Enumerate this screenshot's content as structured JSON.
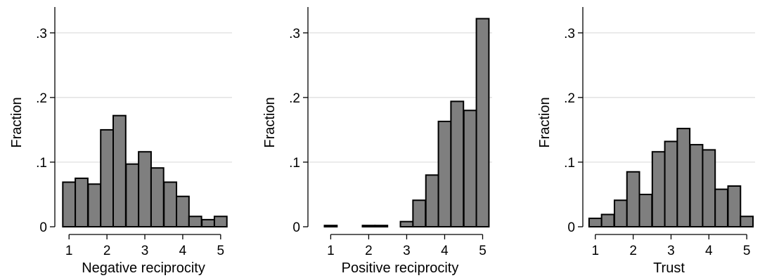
{
  "chart_data": [
    {
      "type": "bar",
      "xlabel": "Negative reciprocity",
      "ylabel": "Fraction",
      "xlim": [
        0.625,
        5.3
      ],
      "ylim": [
        0,
        0.34
      ],
      "bar_width": 0.33,
      "xticks": [
        1,
        2,
        3,
        4,
        5
      ],
      "xtick_labels": [
        "1",
        "2",
        "3",
        "4",
        "5"
      ],
      "yticks": [
        0,
        0.1,
        0.2,
        0.3
      ],
      "ytick_labels": [
        "0",
        ".1",
        ".2",
        ".3"
      ],
      "grid": true,
      "x": [
        1.0,
        1.33,
        1.67,
        2.0,
        2.33,
        2.67,
        3.0,
        3.33,
        3.67,
        4.0,
        4.33,
        4.67,
        5.0
      ],
      "values": [
        0.069,
        0.075,
        0.066,
        0.15,
        0.172,
        0.097,
        0.116,
        0.091,
        0.069,
        0.047,
        0.016,
        0.011,
        0.016
      ],
      "fill_color": "#7f7f7f"
    },
    {
      "type": "bar",
      "xlabel": "Positive reciprocity",
      "ylabel": "Fraction",
      "xlim": [
        0.4,
        5.25
      ],
      "ylim": [
        0,
        0.34
      ],
      "bar_width": 0.33,
      "xticks": [
        1,
        2,
        3,
        4,
        5
      ],
      "xtick_labels": [
        "1",
        "2",
        "3",
        "4",
        "5"
      ],
      "yticks": [
        0,
        0.1,
        0.2,
        0.3
      ],
      "ytick_labels": [
        "0",
        ".1",
        ".2",
        ".3"
      ],
      "grid": true,
      "x": [
        1.0,
        1.33,
        1.67,
        2.0,
        2.33,
        2.67,
        3.0,
        3.33,
        3.67,
        4.0,
        4.33,
        4.67,
        5.0
      ],
      "values": [
        0.002,
        0,
        0,
        0.002,
        0.002,
        0,
        0.008,
        0.041,
        0.08,
        0.163,
        0.194,
        0.18,
        0.322
      ],
      "fill_color": "#7f7f7f"
    },
    {
      "type": "bar",
      "xlabel": "Trust",
      "ylabel": "Fraction",
      "xlim": [
        0.67,
        5.22
      ],
      "ylim": [
        0,
        0.34
      ],
      "bar_width": 0.33,
      "xticks": [
        1,
        2,
        3,
        4,
        5
      ],
      "xtick_labels": [
        "1",
        "2",
        "3",
        "4",
        "5"
      ],
      "yticks": [
        0,
        0.1,
        0.2,
        0.3
      ],
      "ytick_labels": [
        "0",
        ".1",
        ".2",
        ".3"
      ],
      "grid": true,
      "x": [
        1.0,
        1.33,
        1.67,
        2.0,
        2.33,
        2.67,
        3.0,
        3.33,
        3.67,
        4.0,
        4.33,
        4.67,
        5.0
      ],
      "values": [
        0.013,
        0.019,
        0.041,
        0.085,
        0.05,
        0.116,
        0.132,
        0.152,
        0.127,
        0.119,
        0.058,
        0.063,
        0.016
      ],
      "fill_color": "#7f7f7f"
    }
  ]
}
